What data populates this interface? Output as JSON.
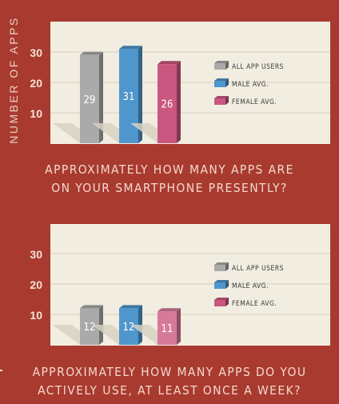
{
  "axis_label": "NUMBER OF APPS",
  "colors": {
    "all": "#aaaaaa",
    "male": "#4f96cc",
    "female": "#c9577f",
    "female_light": "#d67a9a",
    "background": "#a93a2f",
    "panel": "#f2ede1"
  },
  "chart_data": [
    {
      "type": "bar",
      "title_lines": [
        "APPROXIMATELY HOW MANY APPS ARE",
        "ON YOUR SMARTPHONE PRESENTLY?"
      ],
      "ylabel": "NUMBER OF APPS",
      "ylim": [
        0,
        35
      ],
      "yticks": [
        "10",
        "20",
        "30"
      ],
      "grid": true,
      "legend_position": "right",
      "series": [
        {
          "name": "ALL APP USERS",
          "value": 29,
          "label": "29"
        },
        {
          "name": "MALE AVG.",
          "value": 31,
          "label": "31"
        },
        {
          "name": "FEMALE AVG.",
          "value": 26,
          "label": "26"
        }
      ]
    },
    {
      "type": "bar",
      "title_lines": [
        "APPROXIMATELY HOW MANY APPS DO YOU",
        "ACTIVELY USE, AT LEAST ONCE A WEEK?"
      ],
      "ylabel": "NUMBER OF APPS",
      "ylim": [
        0,
        35
      ],
      "yticks": [
        "10",
        "20",
        "30"
      ],
      "grid": true,
      "legend_position": "right",
      "series": [
        {
          "name": "ALL APP USERS",
          "value": 12,
          "label": "12"
        },
        {
          "name": "MALE AVG.",
          "value": 12,
          "label": "12"
        },
        {
          "name": "FEMALE AVG.",
          "value": 11,
          "label": "11"
        }
      ]
    }
  ]
}
